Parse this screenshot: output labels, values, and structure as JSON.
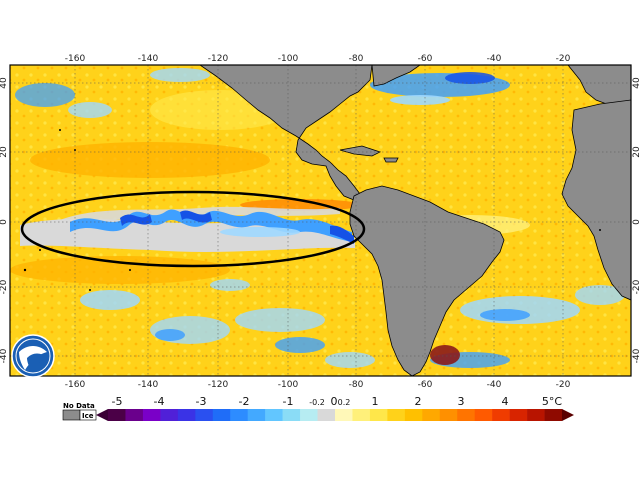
{
  "map": {
    "top_lon_labels": [
      "-160",
      "-140",
      "-120",
      "-100",
      "-80",
      "-60",
      "-40",
      "-20"
    ],
    "bottom_lon_labels": [
      "-160",
      "-140",
      "-120",
      "-100",
      "-80",
      "-60",
      "-40",
      "-20"
    ],
    "left_lat_labels": [
      "40",
      "20",
      "0",
      "-20",
      "-40"
    ],
    "right_lat_labels": [
      "40",
      "20",
      "0",
      "-20",
      "-40"
    ]
  },
  "legend": {
    "no_data_label": "No Data",
    "ice_label": "Ice",
    "labels": [
      "-5",
      "-4",
      "-3",
      "-2",
      "-1",
      "-0.2",
      "0",
      "0.2",
      "1",
      "2",
      "3",
      "4",
      "5°C"
    ]
  },
  "colors": {
    "land": "#8c8c8c",
    "neutral": "#d9d9d9",
    "warm_light": "#ffe94d",
    "warm": "#ffd21a",
    "warm_mid": "#ffb300",
    "warm_hot": "#ff7a00",
    "cool_light": "#9fd8ff",
    "cool": "#3fa0ff",
    "cool_deep": "#1552e6"
  },
  "logo": {
    "icon": "noaa-logo-icon"
  }
}
